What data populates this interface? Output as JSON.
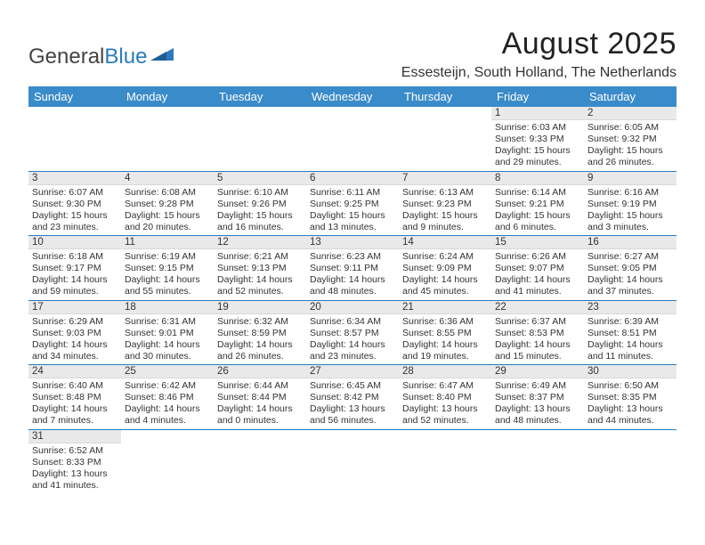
{
  "logo": {
    "general": "General",
    "blue": "Blue"
  },
  "title": "August 2025",
  "location": "Essesteijn, South Holland, The Netherlands",
  "colors": {
    "header_bg": "#3a8bc9",
    "header_fg": "#ffffff",
    "border": "#2b7bbd",
    "daynum_bg": "#e9e9e9",
    "text": "#333333"
  },
  "daysOfWeek": [
    "Sunday",
    "Monday",
    "Tuesday",
    "Wednesday",
    "Thursday",
    "Friday",
    "Saturday"
  ],
  "weeks": [
    [
      null,
      null,
      null,
      null,
      null,
      {
        "n": "1",
        "sr": "Sunrise: 6:03 AM",
        "ss": "Sunset: 9:33 PM",
        "dl1": "Daylight: 15 hours",
        "dl2": "and 29 minutes."
      },
      {
        "n": "2",
        "sr": "Sunrise: 6:05 AM",
        "ss": "Sunset: 9:32 PM",
        "dl1": "Daylight: 15 hours",
        "dl2": "and 26 minutes."
      }
    ],
    [
      {
        "n": "3",
        "sr": "Sunrise: 6:07 AM",
        "ss": "Sunset: 9:30 PM",
        "dl1": "Daylight: 15 hours",
        "dl2": "and 23 minutes."
      },
      {
        "n": "4",
        "sr": "Sunrise: 6:08 AM",
        "ss": "Sunset: 9:28 PM",
        "dl1": "Daylight: 15 hours",
        "dl2": "and 20 minutes."
      },
      {
        "n": "5",
        "sr": "Sunrise: 6:10 AM",
        "ss": "Sunset: 9:26 PM",
        "dl1": "Daylight: 15 hours",
        "dl2": "and 16 minutes."
      },
      {
        "n": "6",
        "sr": "Sunrise: 6:11 AM",
        "ss": "Sunset: 9:25 PM",
        "dl1": "Daylight: 15 hours",
        "dl2": "and 13 minutes."
      },
      {
        "n": "7",
        "sr": "Sunrise: 6:13 AM",
        "ss": "Sunset: 9:23 PM",
        "dl1": "Daylight: 15 hours",
        "dl2": "and 9 minutes."
      },
      {
        "n": "8",
        "sr": "Sunrise: 6:14 AM",
        "ss": "Sunset: 9:21 PM",
        "dl1": "Daylight: 15 hours",
        "dl2": "and 6 minutes."
      },
      {
        "n": "9",
        "sr": "Sunrise: 6:16 AM",
        "ss": "Sunset: 9:19 PM",
        "dl1": "Daylight: 15 hours",
        "dl2": "and 3 minutes."
      }
    ],
    [
      {
        "n": "10",
        "sr": "Sunrise: 6:18 AM",
        "ss": "Sunset: 9:17 PM",
        "dl1": "Daylight: 14 hours",
        "dl2": "and 59 minutes."
      },
      {
        "n": "11",
        "sr": "Sunrise: 6:19 AM",
        "ss": "Sunset: 9:15 PM",
        "dl1": "Daylight: 14 hours",
        "dl2": "and 55 minutes."
      },
      {
        "n": "12",
        "sr": "Sunrise: 6:21 AM",
        "ss": "Sunset: 9:13 PM",
        "dl1": "Daylight: 14 hours",
        "dl2": "and 52 minutes."
      },
      {
        "n": "13",
        "sr": "Sunrise: 6:23 AM",
        "ss": "Sunset: 9:11 PM",
        "dl1": "Daylight: 14 hours",
        "dl2": "and 48 minutes."
      },
      {
        "n": "14",
        "sr": "Sunrise: 6:24 AM",
        "ss": "Sunset: 9:09 PM",
        "dl1": "Daylight: 14 hours",
        "dl2": "and 45 minutes."
      },
      {
        "n": "15",
        "sr": "Sunrise: 6:26 AM",
        "ss": "Sunset: 9:07 PM",
        "dl1": "Daylight: 14 hours",
        "dl2": "and 41 minutes."
      },
      {
        "n": "16",
        "sr": "Sunrise: 6:27 AM",
        "ss": "Sunset: 9:05 PM",
        "dl1": "Daylight: 14 hours",
        "dl2": "and 37 minutes."
      }
    ],
    [
      {
        "n": "17",
        "sr": "Sunrise: 6:29 AM",
        "ss": "Sunset: 9:03 PM",
        "dl1": "Daylight: 14 hours",
        "dl2": "and 34 minutes."
      },
      {
        "n": "18",
        "sr": "Sunrise: 6:31 AM",
        "ss": "Sunset: 9:01 PM",
        "dl1": "Daylight: 14 hours",
        "dl2": "and 30 minutes."
      },
      {
        "n": "19",
        "sr": "Sunrise: 6:32 AM",
        "ss": "Sunset: 8:59 PM",
        "dl1": "Daylight: 14 hours",
        "dl2": "and 26 minutes."
      },
      {
        "n": "20",
        "sr": "Sunrise: 6:34 AM",
        "ss": "Sunset: 8:57 PM",
        "dl1": "Daylight: 14 hours",
        "dl2": "and 23 minutes."
      },
      {
        "n": "21",
        "sr": "Sunrise: 6:36 AM",
        "ss": "Sunset: 8:55 PM",
        "dl1": "Daylight: 14 hours",
        "dl2": "and 19 minutes."
      },
      {
        "n": "22",
        "sr": "Sunrise: 6:37 AM",
        "ss": "Sunset: 8:53 PM",
        "dl1": "Daylight: 14 hours",
        "dl2": "and 15 minutes."
      },
      {
        "n": "23",
        "sr": "Sunrise: 6:39 AM",
        "ss": "Sunset: 8:51 PM",
        "dl1": "Daylight: 14 hours",
        "dl2": "and 11 minutes."
      }
    ],
    [
      {
        "n": "24",
        "sr": "Sunrise: 6:40 AM",
        "ss": "Sunset: 8:48 PM",
        "dl1": "Daylight: 14 hours",
        "dl2": "and 7 minutes."
      },
      {
        "n": "25",
        "sr": "Sunrise: 6:42 AM",
        "ss": "Sunset: 8:46 PM",
        "dl1": "Daylight: 14 hours",
        "dl2": "and 4 minutes."
      },
      {
        "n": "26",
        "sr": "Sunrise: 6:44 AM",
        "ss": "Sunset: 8:44 PM",
        "dl1": "Daylight: 14 hours",
        "dl2": "and 0 minutes."
      },
      {
        "n": "27",
        "sr": "Sunrise: 6:45 AM",
        "ss": "Sunset: 8:42 PM",
        "dl1": "Daylight: 13 hours",
        "dl2": "and 56 minutes."
      },
      {
        "n": "28",
        "sr": "Sunrise: 6:47 AM",
        "ss": "Sunset: 8:40 PM",
        "dl1": "Daylight: 13 hours",
        "dl2": "and 52 minutes."
      },
      {
        "n": "29",
        "sr": "Sunrise: 6:49 AM",
        "ss": "Sunset: 8:37 PM",
        "dl1": "Daylight: 13 hours",
        "dl2": "and 48 minutes."
      },
      {
        "n": "30",
        "sr": "Sunrise: 6:50 AM",
        "ss": "Sunset: 8:35 PM",
        "dl1": "Daylight: 13 hours",
        "dl2": "and 44 minutes."
      }
    ],
    [
      {
        "n": "31",
        "sr": "Sunrise: 6:52 AM",
        "ss": "Sunset: 8:33 PM",
        "dl1": "Daylight: 13 hours",
        "dl2": "and 41 minutes."
      },
      null,
      null,
      null,
      null,
      null,
      null
    ]
  ]
}
